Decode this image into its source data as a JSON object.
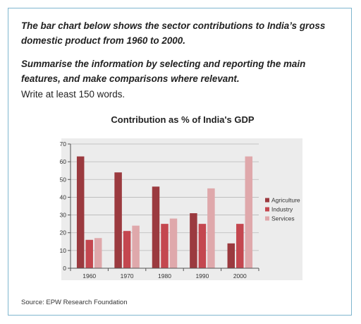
{
  "prompt": {
    "line1": "The bar chart below shows the sector contributions to India’s gross domestic product from 1960 to 2000.",
    "line2": "Summarise the information by selecting and reporting the main features, and make comparisons where relevant.",
    "instruction": "Write at least 150 words."
  },
  "source": "Source: EPW Research Foundation",
  "chart_data": {
    "type": "bar",
    "title": "Contribution as % of India's GDP",
    "xlabel": "",
    "ylabel": "",
    "categories": [
      "1960",
      "1970",
      "1980",
      "1990",
      "2000"
    ],
    "series": [
      {
        "name": "Agriculture",
        "color": "#9b3a3f",
        "values": [
          63,
          54,
          46,
          31,
          14
        ]
      },
      {
        "name": "Industry",
        "color": "#c4474f",
        "values": [
          16,
          21,
          25,
          25,
          25
        ]
      },
      {
        "name": "Services",
        "color": "#dfa8ab",
        "values": [
          17,
          24,
          28,
          45,
          63
        ]
      }
    ],
    "ylim": [
      0,
      70
    ],
    "yticks": [
      0,
      10,
      20,
      30,
      40,
      50,
      60,
      70
    ],
    "grid": true,
    "legend": "right"
  }
}
